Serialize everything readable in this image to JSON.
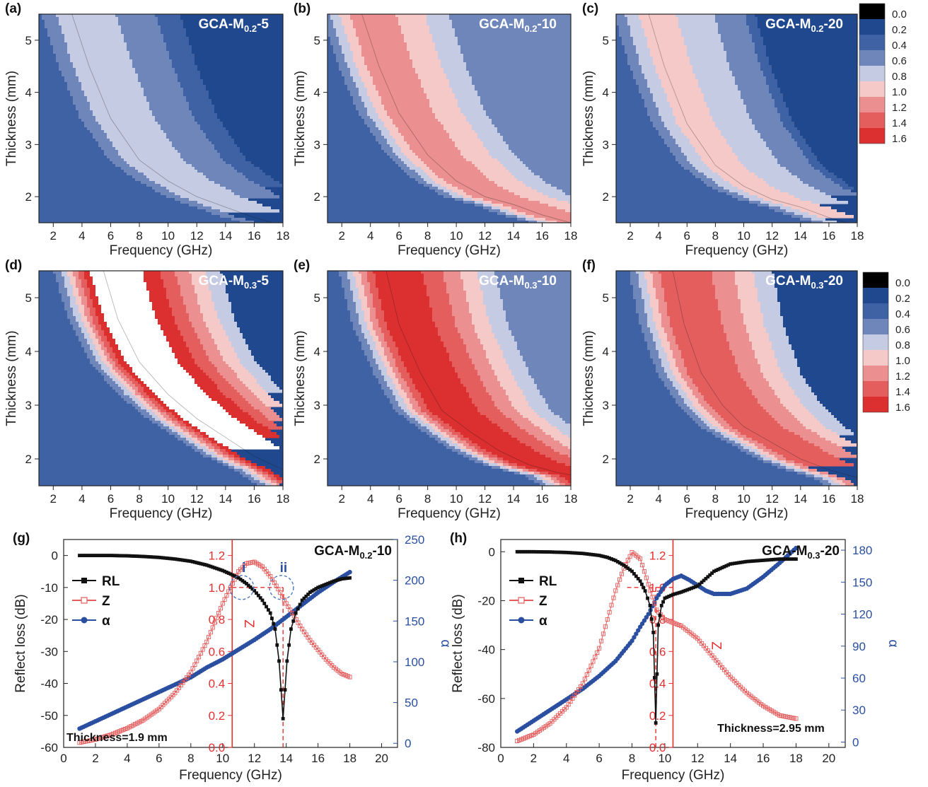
{
  "colors": {
    "bands": [
      "#000000",
      "#20488f",
      "#3e62a4",
      "#6f86bb",
      "#c5cbe3",
      "#f6c9c9",
      "#eb8f90",
      "#e55e5e",
      "#dc2f2f"
    ],
    "rl": "#111111",
    "z": "#e45b5b",
    "alpha": "#2a4fa0",
    "guide": "#e53030",
    "circle": "#4a76c0"
  },
  "colorbar": {
    "ticks": [
      "0.0",
      "0.2",
      "0.4",
      "0.6",
      "0.8",
      "1.0",
      "1.2",
      "1.4",
      "1.6"
    ]
  },
  "chart_data": [
    {
      "panel": "(a)",
      "type": "heatmap",
      "title_parts": [
        "GCA-M",
        "0.2",
        "-5"
      ],
      "xlabel": "Frequency (GHz)",
      "ylabel": "Thickness (mm)",
      "xlim": [
        1,
        18
      ],
      "ylim": [
        1.5,
        5.5
      ],
      "xticks": [
        2,
        4,
        6,
        8,
        10,
        12,
        14,
        16,
        18
      ],
      "yticks": [
        2,
        3,
        4,
        5
      ],
      "peak_level": 0.7,
      "ridge": [
        [
          3.3,
          5.5
        ],
        [
          4.5,
          4.5
        ],
        [
          6,
          3.5
        ],
        [
          8,
          2.7
        ],
        [
          10,
          2.3
        ],
        [
          12,
          2.0
        ],
        [
          14,
          1.8
        ],
        [
          16,
          1.6
        ],
        [
          18,
          1.45
        ]
      ]
    },
    {
      "panel": "(b)",
      "type": "heatmap",
      "title_parts": [
        "GCA-M",
        "0.2",
        "-10"
      ],
      "xlabel": "Frequency (GHz)",
      "ylabel": "Thickness (mm)",
      "xlim": [
        1,
        18
      ],
      "ylim": [
        1.5,
        5.5
      ],
      "xticks": [
        2,
        4,
        6,
        8,
        10,
        12,
        14,
        16,
        18
      ],
      "yticks": [
        2,
        3,
        4,
        5
      ],
      "peak_level": 1.1,
      "ridge": [
        [
          3.4,
          5.5
        ],
        [
          4.6,
          4.5
        ],
        [
          6,
          3.6
        ],
        [
          8,
          2.8
        ],
        [
          10,
          2.3
        ],
        [
          12,
          2.0
        ],
        [
          14,
          1.85
        ],
        [
          16,
          1.65
        ],
        [
          18,
          1.5
        ]
      ]
    },
    {
      "panel": "(c)",
      "type": "heatmap",
      "title_parts": [
        "GCA-M",
        "0.2",
        "-20"
      ],
      "xlabel": "Frequency (GHz)",
      "ylabel": "Thickness (mm)",
      "xlim": [
        1,
        18
      ],
      "ylim": [
        1.5,
        5.5
      ],
      "xticks": [
        2,
        4,
        6,
        8,
        10,
        12,
        14,
        16,
        18
      ],
      "yticks": [
        2,
        3,
        4,
        5
      ],
      "peak_level": 0.85,
      "ridge": [
        [
          3.3,
          5.5
        ],
        [
          4.4,
          4.5
        ],
        [
          6,
          3.4
        ],
        [
          8,
          2.6
        ],
        [
          10,
          2.2
        ],
        [
          12,
          1.95
        ],
        [
          14,
          1.8
        ],
        [
          16,
          1.6
        ],
        [
          18,
          1.45
        ]
      ]
    },
    {
      "panel": "(d)",
      "type": "heatmap",
      "title_parts": [
        "GCA-M",
        "0.3",
        "-5"
      ],
      "xlabel": "Frequency (GHz)",
      "ylabel": "Thickness (mm)",
      "xlim": [
        1,
        18
      ],
      "ylim": [
        1.5,
        5.5
      ],
      "xticks": [
        2,
        4,
        6,
        8,
        10,
        12,
        14,
        16,
        18
      ],
      "yticks": [
        2,
        3,
        4,
        5
      ],
      "peak_level": 1.8,
      "ridge": [
        [
          5.5,
          5.5
        ],
        [
          6.5,
          4.6
        ],
        [
          8,
          3.8
        ],
        [
          10,
          3.2
        ],
        [
          12,
          2.75
        ],
        [
          14,
          2.4
        ],
        [
          16,
          2.05
        ],
        [
          18,
          1.8
        ]
      ]
    },
    {
      "panel": "(e)",
      "type": "heatmap",
      "title_parts": [
        "GCA-M",
        "0.3",
        "-10"
      ],
      "xlabel": "Frequency (GHz)",
      "ylabel": "Thickness (mm)",
      "xlim": [
        1,
        18
      ],
      "ylim": [
        1.5,
        5.5
      ],
      "xticks": [
        2,
        4,
        6,
        8,
        10,
        12,
        14,
        16,
        18
      ],
      "yticks": [
        2,
        3,
        4,
        5
      ],
      "peak_level": 1.55,
      "ridge": [
        [
          5.1,
          5.5
        ],
        [
          6,
          4.5
        ],
        [
          7.5,
          3.6
        ],
        [
          9,
          2.9
        ],
        [
          11,
          2.5
        ],
        [
          13,
          2.15
        ],
        [
          15,
          1.9
        ],
        [
          17,
          1.75
        ],
        [
          18,
          1.7
        ]
      ]
    },
    {
      "panel": "(f)",
      "type": "heatmap",
      "title_parts": [
        "GCA-M",
        "0.3",
        "-20"
      ],
      "xlabel": "Frequency (GHz)",
      "ylabel": "Thickness (mm)",
      "xlim": [
        1,
        18
      ],
      "ylim": [
        1.5,
        5.5
      ],
      "xticks": [
        2,
        4,
        6,
        8,
        10,
        12,
        14,
        16,
        18
      ],
      "yticks": [
        2,
        3,
        4,
        5
      ],
      "peak_level": 1.35,
      "ridge": [
        [
          5.0,
          5.5
        ],
        [
          5.8,
          4.5
        ],
        [
          7,
          3.6
        ],
        [
          8.5,
          3.0
        ],
        [
          10,
          2.6
        ],
        [
          12,
          2.3
        ],
        [
          14,
          2.0
        ],
        [
          16,
          1.8
        ],
        [
          18,
          1.65
        ]
      ]
    },
    {
      "panel": "(g)",
      "type": "line",
      "title_parts": [
        "GCA-M",
        "0.2",
        "-10"
      ],
      "xlabel": "Frequency (GHz)",
      "ylabel": "Reflect loss (dB)",
      "ylabel_right": "α",
      "xlim": [
        0,
        21
      ],
      "ylim": [
        -60,
        5
      ],
      "xticks": [
        0,
        2,
        4,
        6,
        8,
        10,
        12,
        14,
        16,
        18,
        20
      ],
      "yticks": [
        0,
        -10,
        -20,
        -30,
        -40,
        -50,
        -60
      ],
      "z_axis_x": 10.6,
      "z_axis_label": "Z",
      "z_lim": [
        0,
        1.3
      ],
      "z_ticks": [
        "0.0",
        "0.2",
        "0.4",
        "0.6",
        "0.8",
        "1.0",
        "1.2"
      ],
      "alpha_lim": [
        -5,
        250
      ],
      "alpha_ticks": [
        0,
        50,
        100,
        150,
        200,
        250
      ],
      "annotation": "Thickness=1.9 mm",
      "circle_labels": [
        "i",
        "ii"
      ],
      "circles_x": [
        11.2,
        13.7
      ],
      "circle_z": 1.0,
      "legend": [
        "RL",
        "Z",
        "α"
      ],
      "series": [
        {
          "name": "RL",
          "axis": "left",
          "x": [
            1,
            2,
            3,
            4,
            5,
            6,
            7,
            8,
            9,
            10,
            10.5,
            11,
            11.5,
            12,
            12.5,
            13,
            13.3,
            13.55,
            13.8,
            14.05,
            14.3,
            14.6,
            15,
            15.5,
            16,
            16.5,
            17,
            17.5,
            18
          ],
          "y": [
            0,
            0,
            0,
            -0.1,
            -0.3,
            -0.6,
            -1.1,
            -1.8,
            -3,
            -4.7,
            -5.8,
            -7,
            -8.8,
            -11,
            -14,
            -18,
            -23,
            -33,
            -51,
            -33,
            -23,
            -18,
            -14,
            -11.5,
            -10,
            -9,
            -8,
            -7.3,
            -7
          ]
        },
        {
          "name": "Z",
          "axis": "z",
          "x": [
            1,
            2,
            3,
            4,
            5,
            6,
            7,
            8,
            9,
            10,
            11,
            11.5,
            12,
            12.5,
            13,
            13.5,
            14,
            14.5,
            15,
            15.5,
            16,
            16.5,
            17,
            17.5,
            18
          ],
          "y": [
            0.03,
            0.05,
            0.08,
            0.12,
            0.17,
            0.24,
            0.34,
            0.47,
            0.66,
            0.9,
            1.1,
            1.15,
            1.16,
            1.13,
            1.07,
            0.99,
            0.9,
            0.82,
            0.74,
            0.67,
            0.61,
            0.55,
            0.5,
            0.46,
            0.44
          ]
        },
        {
          "name": "α",
          "axis": "alpha",
          "x": [
            1,
            2,
            3,
            4,
            5,
            6,
            7,
            8,
            9,
            10,
            11,
            12,
            13,
            14,
            15,
            16,
            17,
            18
          ],
          "y": [
            18,
            27,
            36,
            45,
            54,
            63,
            72,
            81,
            93,
            103,
            115,
            127,
            140,
            155,
            170,
            185,
            198,
            210
          ]
        }
      ]
    },
    {
      "panel": "(h)",
      "type": "line",
      "title_parts": [
        "GCA-M",
        "0.3",
        "-20"
      ],
      "xlabel": "Frequency (GHz)",
      "ylabel": "Reflect loss (dB)",
      "ylabel_right": "α",
      "xlim": [
        0,
        21
      ],
      "ylim": [
        -80,
        5
      ],
      "xticks": [
        0,
        2,
        4,
        6,
        8,
        10,
        12,
        14,
        16,
        18,
        20
      ],
      "yticks": [
        0,
        -20,
        -40,
        -60,
        -80
      ],
      "z_axis_x": 10.5,
      "z_axis_label": "Z",
      "z_lim": [
        0,
        1.3
      ],
      "z_ticks": [
        "0.0",
        "0.2",
        "0.4",
        "0.6",
        "0.8",
        "1.0",
        "1.2"
      ],
      "alpha_lim": [
        -5,
        190
      ],
      "alpha_ticks": [
        0,
        30,
        60,
        90,
        120,
        150,
        180
      ],
      "annotation": "Thickness=2.95 mm",
      "legend": [
        "RL",
        "Z",
        "α"
      ],
      "series": [
        {
          "name": "RL",
          "axis": "left",
          "x": [
            1,
            2,
            3,
            4,
            5,
            6,
            6.5,
            7,
            7.5,
            8,
            8.5,
            8.8,
            9.1,
            9.3,
            9.45,
            9.6,
            9.8,
            10,
            10.5,
            11,
            12,
            13,
            14,
            15,
            16,
            17,
            18
          ],
          "y": [
            0,
            0,
            -0.1,
            -0.3,
            -0.7,
            -1.5,
            -2.3,
            -3.6,
            -5.5,
            -8,
            -12,
            -16,
            -22,
            -33,
            -70,
            -30,
            -22,
            -19,
            -17.5,
            -16.5,
            -14,
            -8,
            -5,
            -4,
            -3.5,
            -3,
            -3
          ]
        },
        {
          "name": "Z",
          "axis": "z",
          "x": [
            1,
            2,
            3,
            4,
            5,
            6,
            6.5,
            7,
            7.5,
            8,
            8.5,
            9,
            9.5,
            10,
            10.5,
            11,
            12,
            13,
            14,
            15,
            16,
            17,
            18
          ],
          "y": [
            0.04,
            0.08,
            0.15,
            0.25,
            0.4,
            0.62,
            0.8,
            0.98,
            1.12,
            1.22,
            1.18,
            1.02,
            0.86,
            0.8,
            0.78,
            0.76,
            0.68,
            0.56,
            0.44,
            0.34,
            0.26,
            0.2,
            0.18
          ]
        },
        {
          "name": "α",
          "axis": "alpha",
          "x": [
            1,
            2,
            3,
            4,
            5,
            6,
            7,
            8,
            8.5,
            9,
            9.5,
            10,
            10.5,
            11,
            11.5,
            12,
            12.5,
            13,
            14,
            15,
            16,
            17,
            18
          ],
          "y": [
            10,
            20,
            30,
            40,
            50,
            62,
            76,
            95,
            108,
            120,
            135,
            147,
            153,
            156,
            152,
            147,
            142,
            139,
            139,
            144,
            155,
            168,
            182
          ]
        }
      ]
    }
  ]
}
